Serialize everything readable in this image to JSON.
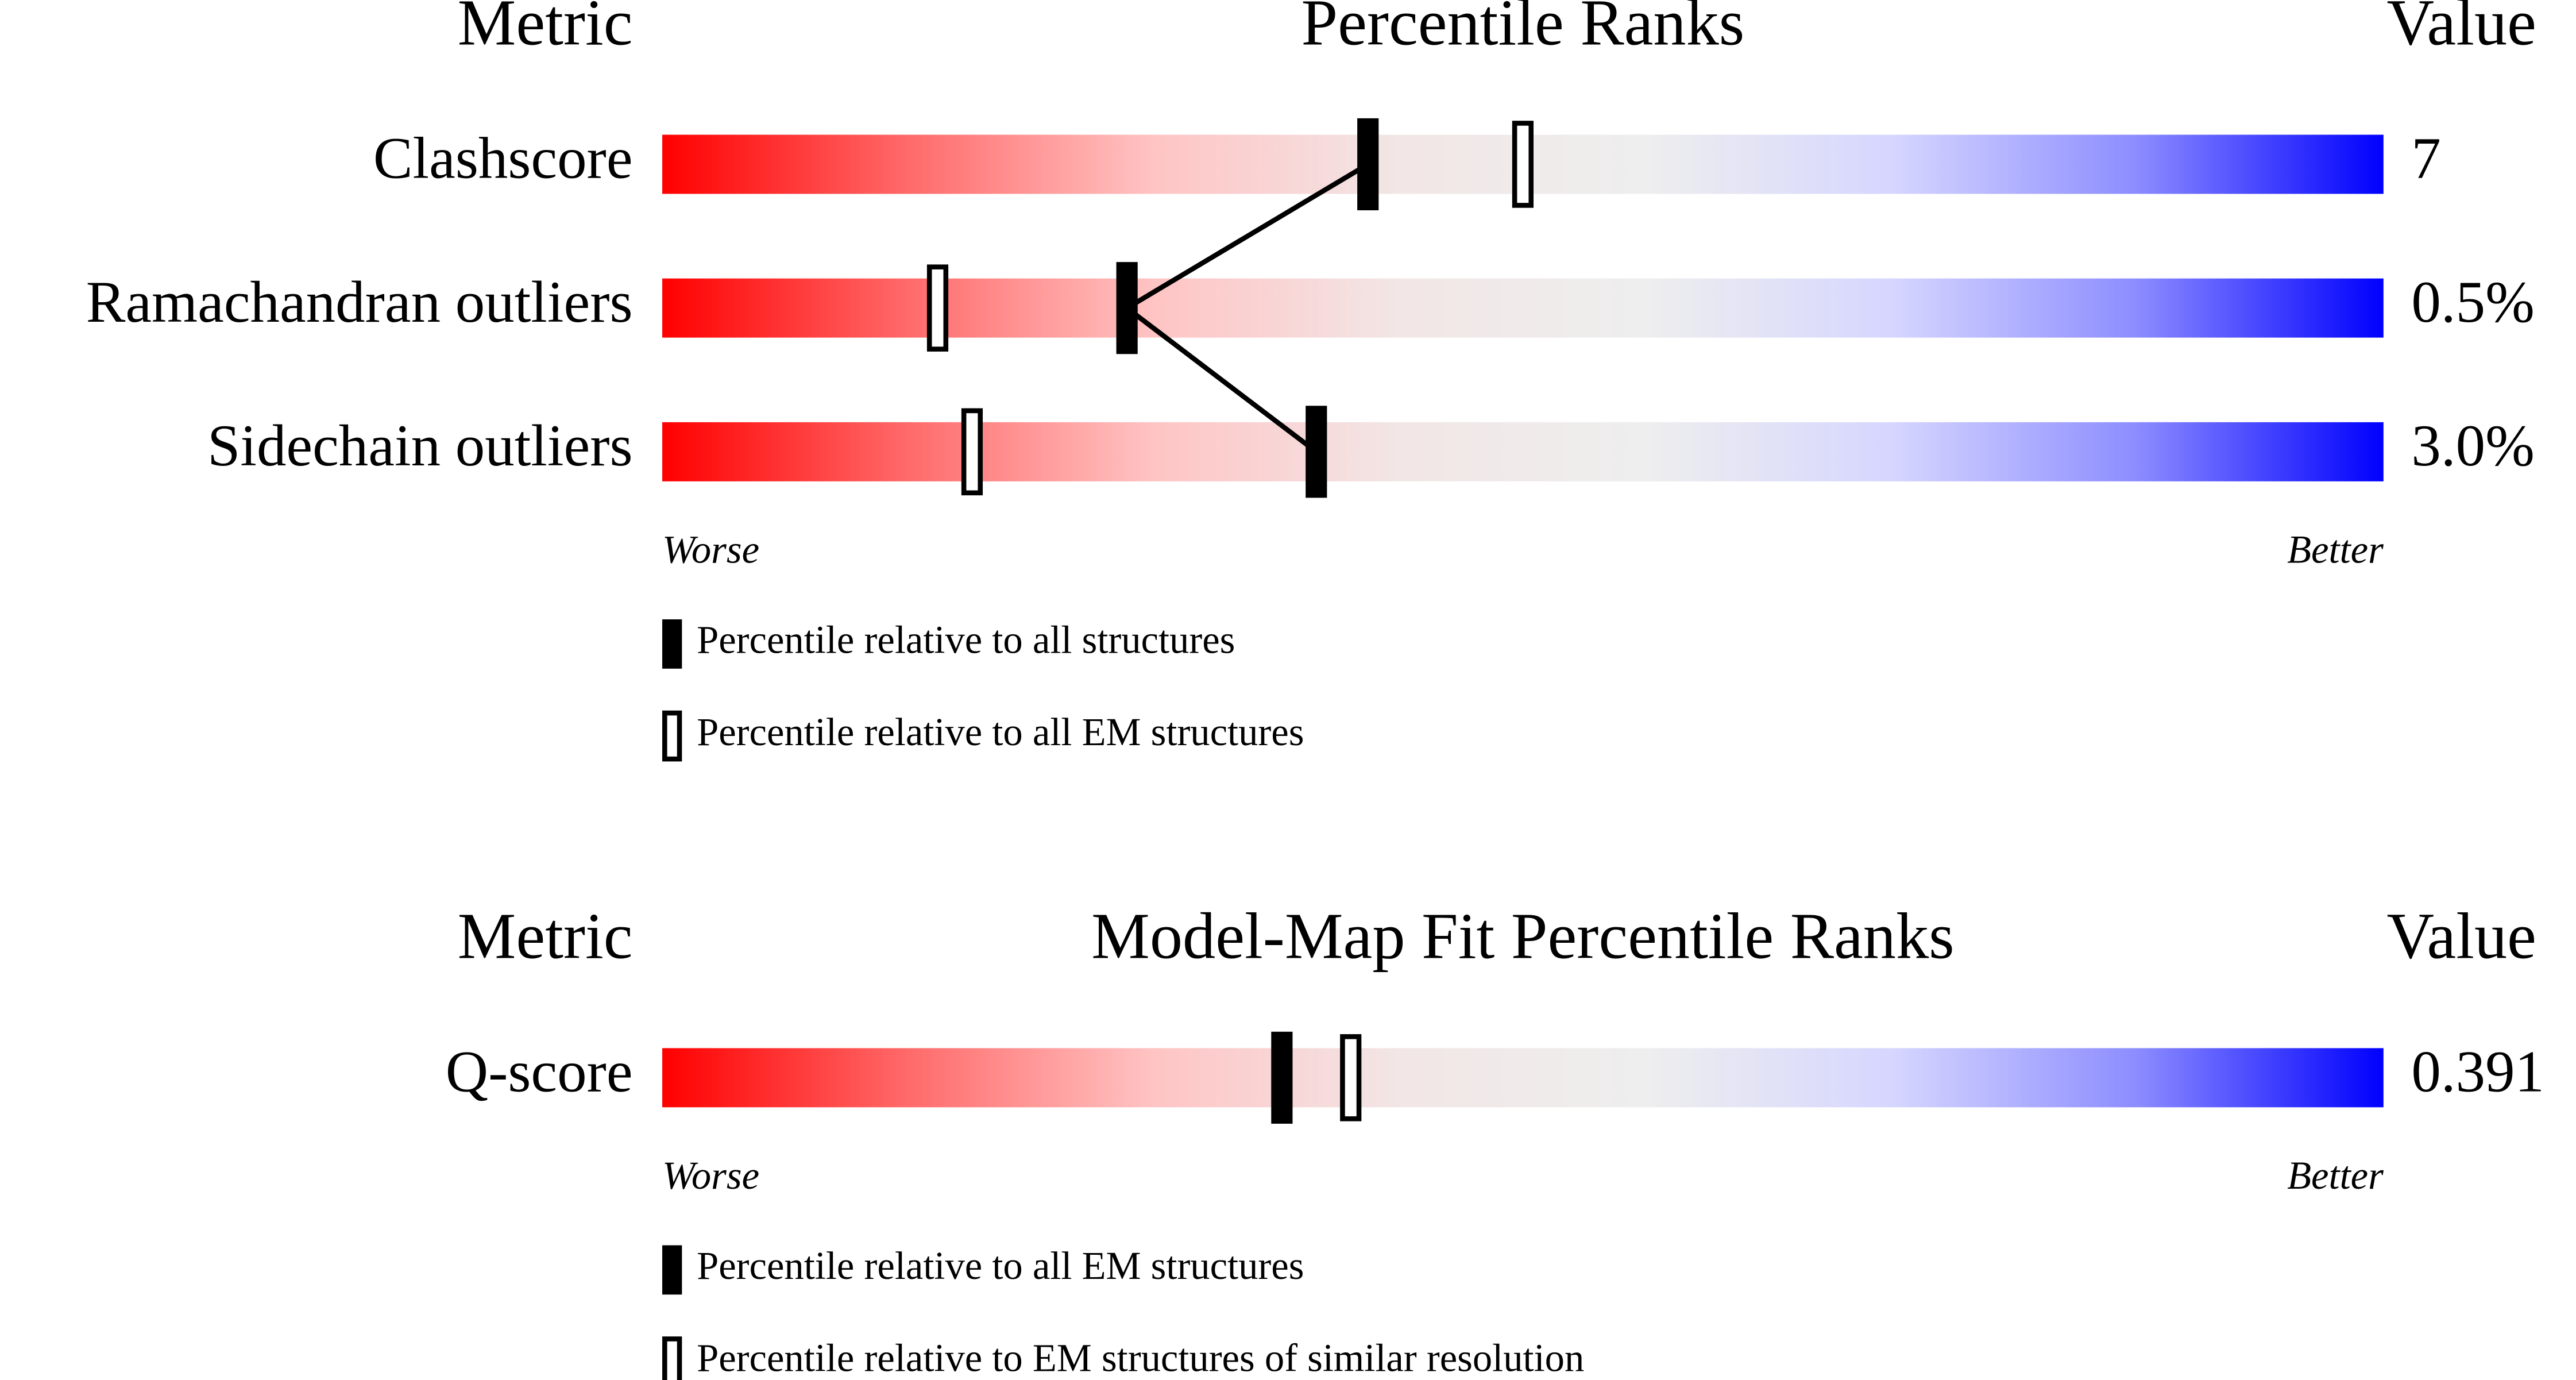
{
  "chart_data": [
    {
      "type": "percentile_slider",
      "title": "Percentile Ranks",
      "metric_header": "Metric",
      "value_header": "Value",
      "categories": [
        "Clashscore",
        "Ramachandran outliers",
        "Sidechain outliers"
      ],
      "metric_values": [
        "7",
        "0.5%",
        "3.0%"
      ],
      "series": [
        {
          "name": "Percentile relative to all structures",
          "color": "#000000",
          "marker": "filled",
          "values": [
            41,
            27,
            38
          ]
        },
        {
          "name": "Percentile relative to all EM structures",
          "color": "#000000",
          "marker": "open",
          "values": [
            50,
            16,
            18
          ]
        }
      ],
      "xlim": [
        0,
        100
      ],
      "low_label": "Worse",
      "high_label": "Better",
      "gradient": [
        "#ff0000",
        "#ff6a6a",
        "#ffc4c4",
        "#f2e6e6",
        "#eeeeee",
        "#d6d6ff",
        "#8c8cff",
        "#0000ff"
      ],
      "connect_series": 0
    },
    {
      "type": "percentile_slider",
      "title": "Model-Map Fit Percentile Ranks",
      "metric_header": "Metric",
      "value_header": "Value",
      "categories": [
        "Q-score"
      ],
      "metric_values": [
        "0.391"
      ],
      "series": [
        {
          "name": "Percentile relative to all EM structures",
          "color": "#000000",
          "marker": "filled",
          "values": [
            36
          ]
        },
        {
          "name": "Percentile relative to EM structures of similar resolution",
          "color": "#000000",
          "marker": "open",
          "values": [
            40
          ]
        }
      ],
      "xlim": [
        0,
        100
      ],
      "low_label": "Worse",
      "high_label": "Better",
      "gradient": [
        "#ff0000",
        "#ff6a6a",
        "#ffc4c4",
        "#f2e6e6",
        "#eeeeee",
        "#d6d6ff",
        "#8c8cff",
        "#0000ff"
      ],
      "connect_series": 0
    }
  ]
}
